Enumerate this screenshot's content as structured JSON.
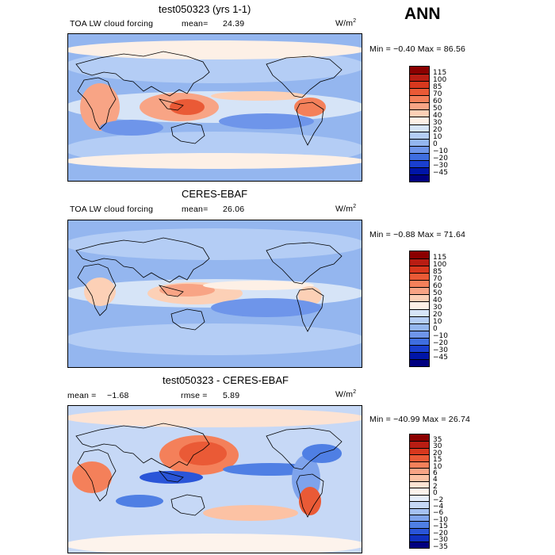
{
  "season": "ANN",
  "units_base": "W/m",
  "units_exp": "2",
  "panels": [
    {
      "id": "model",
      "title": "test050323 (yrs 1-1)",
      "variable": "TOA LW cloud forcing",
      "mean_label": "mean=",
      "mean_value": "24.39",
      "minmax": "Min =  −0.40  Max =  86.56",
      "colorbar": [
        "115",
        "100",
        "85",
        "70",
        "60",
        "50",
        "40",
        "30",
        "20",
        "10",
        "0",
        "−10",
        "−20",
        "−30",
        "−45"
      ]
    },
    {
      "id": "obs",
      "title": "CERES-EBAF",
      "variable": "TOA LW cloud forcing",
      "mean_label": "mean=",
      "mean_value": "26.06",
      "minmax": "Min =  −0.88  Max =  71.64",
      "colorbar": [
        "115",
        "100",
        "85",
        "70",
        "60",
        "50",
        "40",
        "30",
        "20",
        "10",
        "0",
        "−10",
        "−20",
        "−30",
        "−45"
      ]
    },
    {
      "id": "diff",
      "title": "test050323 - CERES-EBAF",
      "mean_label": "mean =",
      "mean_value": "−1.68",
      "rmse_label": "rmse =",
      "rmse_value": "5.89",
      "minmax": "Min = −40.99  Max =  26.74",
      "colorbar": [
        "35",
        "30",
        "20",
        "15",
        "10",
        "6",
        "4",
        "2",
        "0",
        "−2",
        "−4",
        "−6",
        "−10",
        "−15",
        "−20",
        "−30",
        "−35"
      ]
    }
  ],
  "colors": {
    "abs_palette": [
      "#8b0000",
      "#b81d13",
      "#d8381e",
      "#ea5a36",
      "#f4805a",
      "#f8a485",
      "#fcd0b6",
      "#fdf0e6",
      "#d6e4f7",
      "#b4cdf5",
      "#94b6ef",
      "#6e95ea",
      "#3f6ee0",
      "#1a3fcf",
      "#0015a8",
      "#000080"
    ],
    "diff_palette": [
      "#8b0000",
      "#b81d13",
      "#d8381e",
      "#ea5a36",
      "#f4805a",
      "#f8a485",
      "#fcc2a4",
      "#fde3d3",
      "#fdf3ec",
      "#e6eefb",
      "#c6d8f6",
      "#a4c0f2",
      "#7ea3ec",
      "#4f7fe4",
      "#2a55d8",
      "#1030c0",
      "#000080"
    ],
    "land_line": "#000000"
  }
}
